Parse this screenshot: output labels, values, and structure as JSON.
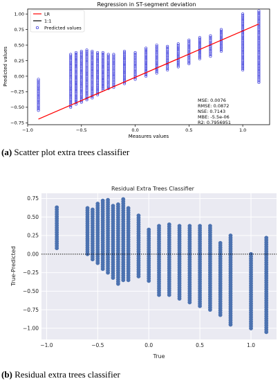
{
  "captions": {
    "a_label": "(a)",
    "a_text": " Scatter plot extra trees classifier",
    "b_label": "(b)",
    "b_text": " Residual extra trees classifier"
  },
  "colors": {
    "lr_line": "#ff0000",
    "scatter_edge": "#1f1fd6",
    "residual_fill": "#4c72b0",
    "seaborn_bg": "#eaeaf2"
  },
  "chart_data": [
    {
      "type": "scatter",
      "title": "Regression in ST-segment deviation",
      "xlabel": "Measures values",
      "ylabel": "Predicted values",
      "xlim": [
        -1.0,
        1.25
      ],
      "ylim": [
        -0.78,
        1.08
      ],
      "xticks": [
        -1.0,
        -0.5,
        0.0,
        0.5,
        1.0
      ],
      "xtick_labels": [
        "−1.0",
        "−0.5",
        "0.0",
        "0.5",
        "1.0"
      ],
      "yticks": [
        -0.75,
        -0.5,
        -0.25,
        0.0,
        0.25,
        0.5,
        0.75,
        1.0
      ],
      "ytick_labels": [
        "−0.75",
        "−0.50",
        "−0.25",
        "0.00",
        "0.25",
        "0.50",
        "0.75",
        "1.00"
      ],
      "grid": false,
      "legend_position": "top-left",
      "legend": [
        "LR",
        "1:1",
        "Predicted values"
      ],
      "lr_line": {
        "x": [
          -0.9,
          1.15
        ],
        "y": [
          -0.69,
          0.84
        ]
      },
      "stats": [
        "MSE: 0.0076",
        "RMSE: 0.0872",
        "NSE: 0.7143",
        "MBE: -5.5e-06",
        "R2: 0.7956951"
      ],
      "columns": [
        {
          "x": -0.9,
          "y_min": -0.55,
          "y_max": -0.05
        },
        {
          "x": -0.6,
          "y_min": -0.5,
          "y_max": 0.35
        },
        {
          "x": -0.55,
          "y_min": -0.45,
          "y_max": 0.38
        },
        {
          "x": -0.5,
          "y_min": -0.42,
          "y_max": 0.4
        },
        {
          "x": -0.45,
          "y_min": -0.38,
          "y_max": 0.42
        },
        {
          "x": -0.4,
          "y_min": -0.35,
          "y_max": 0.4
        },
        {
          "x": -0.35,
          "y_min": -0.3,
          "y_max": 0.38
        },
        {
          "x": -0.3,
          "y_min": -0.22,
          "y_max": 0.38
        },
        {
          "x": -0.25,
          "y_min": -0.2,
          "y_max": 0.35
        },
        {
          "x": -0.2,
          "y_min": -0.18,
          "y_max": 0.35
        },
        {
          "x": -0.1,
          "y_min": -0.12,
          "y_max": 0.4
        },
        {
          "x": 0.0,
          "y_min": -0.05,
          "y_max": 0.38
        },
        {
          "x": 0.1,
          "y_min": 0.0,
          "y_max": 0.45
        },
        {
          "x": 0.2,
          "y_min": 0.05,
          "y_max": 0.5
        },
        {
          "x": 0.3,
          "y_min": 0.1,
          "y_max": 0.48
        },
        {
          "x": 0.4,
          "y_min": 0.15,
          "y_max": 0.52
        },
        {
          "x": 0.5,
          "y_min": 0.2,
          "y_max": 0.58
        },
        {
          "x": 0.6,
          "y_min": 0.28,
          "y_max": 0.62
        },
        {
          "x": 0.7,
          "y_min": 0.32,
          "y_max": 0.65
        },
        {
          "x": 0.8,
          "y_min": 0.4,
          "y_max": 0.75
        },
        {
          "x": 1.0,
          "y_min": 0.1,
          "y_max": 1.0
        },
        {
          "x": 1.15,
          "y_min": -0.1,
          "y_max": 1.05
        }
      ]
    },
    {
      "type": "scatter",
      "title": "Residual Extra Trees Classifier",
      "xlabel": "True",
      "ylabel": "True-Predicted",
      "xlim": [
        -1.05,
        1.25
      ],
      "ylim": [
        -1.15,
        0.82
      ],
      "xticks": [
        -1.0,
        -0.5,
        0.0,
        0.5,
        1.0
      ],
      "xtick_labels": [
        "−1.0",
        "−0.5",
        "0.0",
        "0.5",
        "1.0"
      ],
      "yticks": [
        -1.0,
        -0.75,
        -0.5,
        -0.25,
        0.0,
        0.25,
        0.5,
        0.75
      ],
      "ytick_labels": [
        "−1.00",
        "−0.75",
        "−0.50",
        "−0.25",
        "0.00",
        "0.25",
        "0.50",
        "0.75"
      ],
      "grid": true,
      "zero_line": 0.0,
      "columns": [
        {
          "x": -0.9,
          "y_min": 0.08,
          "y_max": 0.63
        },
        {
          "x": -0.6,
          "y_min": 0.0,
          "y_max": 0.62
        },
        {
          "x": -0.55,
          "y_min": -0.07,
          "y_max": 0.6
        },
        {
          "x": -0.5,
          "y_min": -0.12,
          "y_max": 0.68
        },
        {
          "x": -0.45,
          "y_min": -0.2,
          "y_max": 0.72
        },
        {
          "x": -0.4,
          "y_min": -0.25,
          "y_max": 0.73
        },
        {
          "x": -0.35,
          "y_min": -0.32,
          "y_max": 0.65
        },
        {
          "x": -0.3,
          "y_min": -0.4,
          "y_max": 0.67
        },
        {
          "x": -0.25,
          "y_min": -0.35,
          "y_max": 0.74
        },
        {
          "x": -0.2,
          "y_min": -0.35,
          "y_max": 0.62
        },
        {
          "x": -0.1,
          "y_min": -0.3,
          "y_max": 0.52
        },
        {
          "x": 0.0,
          "y_min": -0.36,
          "y_max": 0.33
        },
        {
          "x": 0.1,
          "y_min": -0.55,
          "y_max": 0.38
        },
        {
          "x": 0.2,
          "y_min": -0.55,
          "y_max": 0.4
        },
        {
          "x": 0.3,
          "y_min": -0.6,
          "y_max": 0.38
        },
        {
          "x": 0.4,
          "y_min": -0.65,
          "y_max": 0.38
        },
        {
          "x": 0.5,
          "y_min": -0.7,
          "y_max": 0.38
        },
        {
          "x": 0.6,
          "y_min": -0.75,
          "y_max": 0.38
        },
        {
          "x": 0.7,
          "y_min": -0.82,
          "y_max": 0.15
        },
        {
          "x": 0.8,
          "y_min": -0.95,
          "y_max": 0.25
        },
        {
          "x": 1.0,
          "y_min": -1.0,
          "y_max": 0.0
        },
        {
          "x": 1.15,
          "y_min": -1.05,
          "y_max": 0.22
        }
      ]
    }
  ]
}
